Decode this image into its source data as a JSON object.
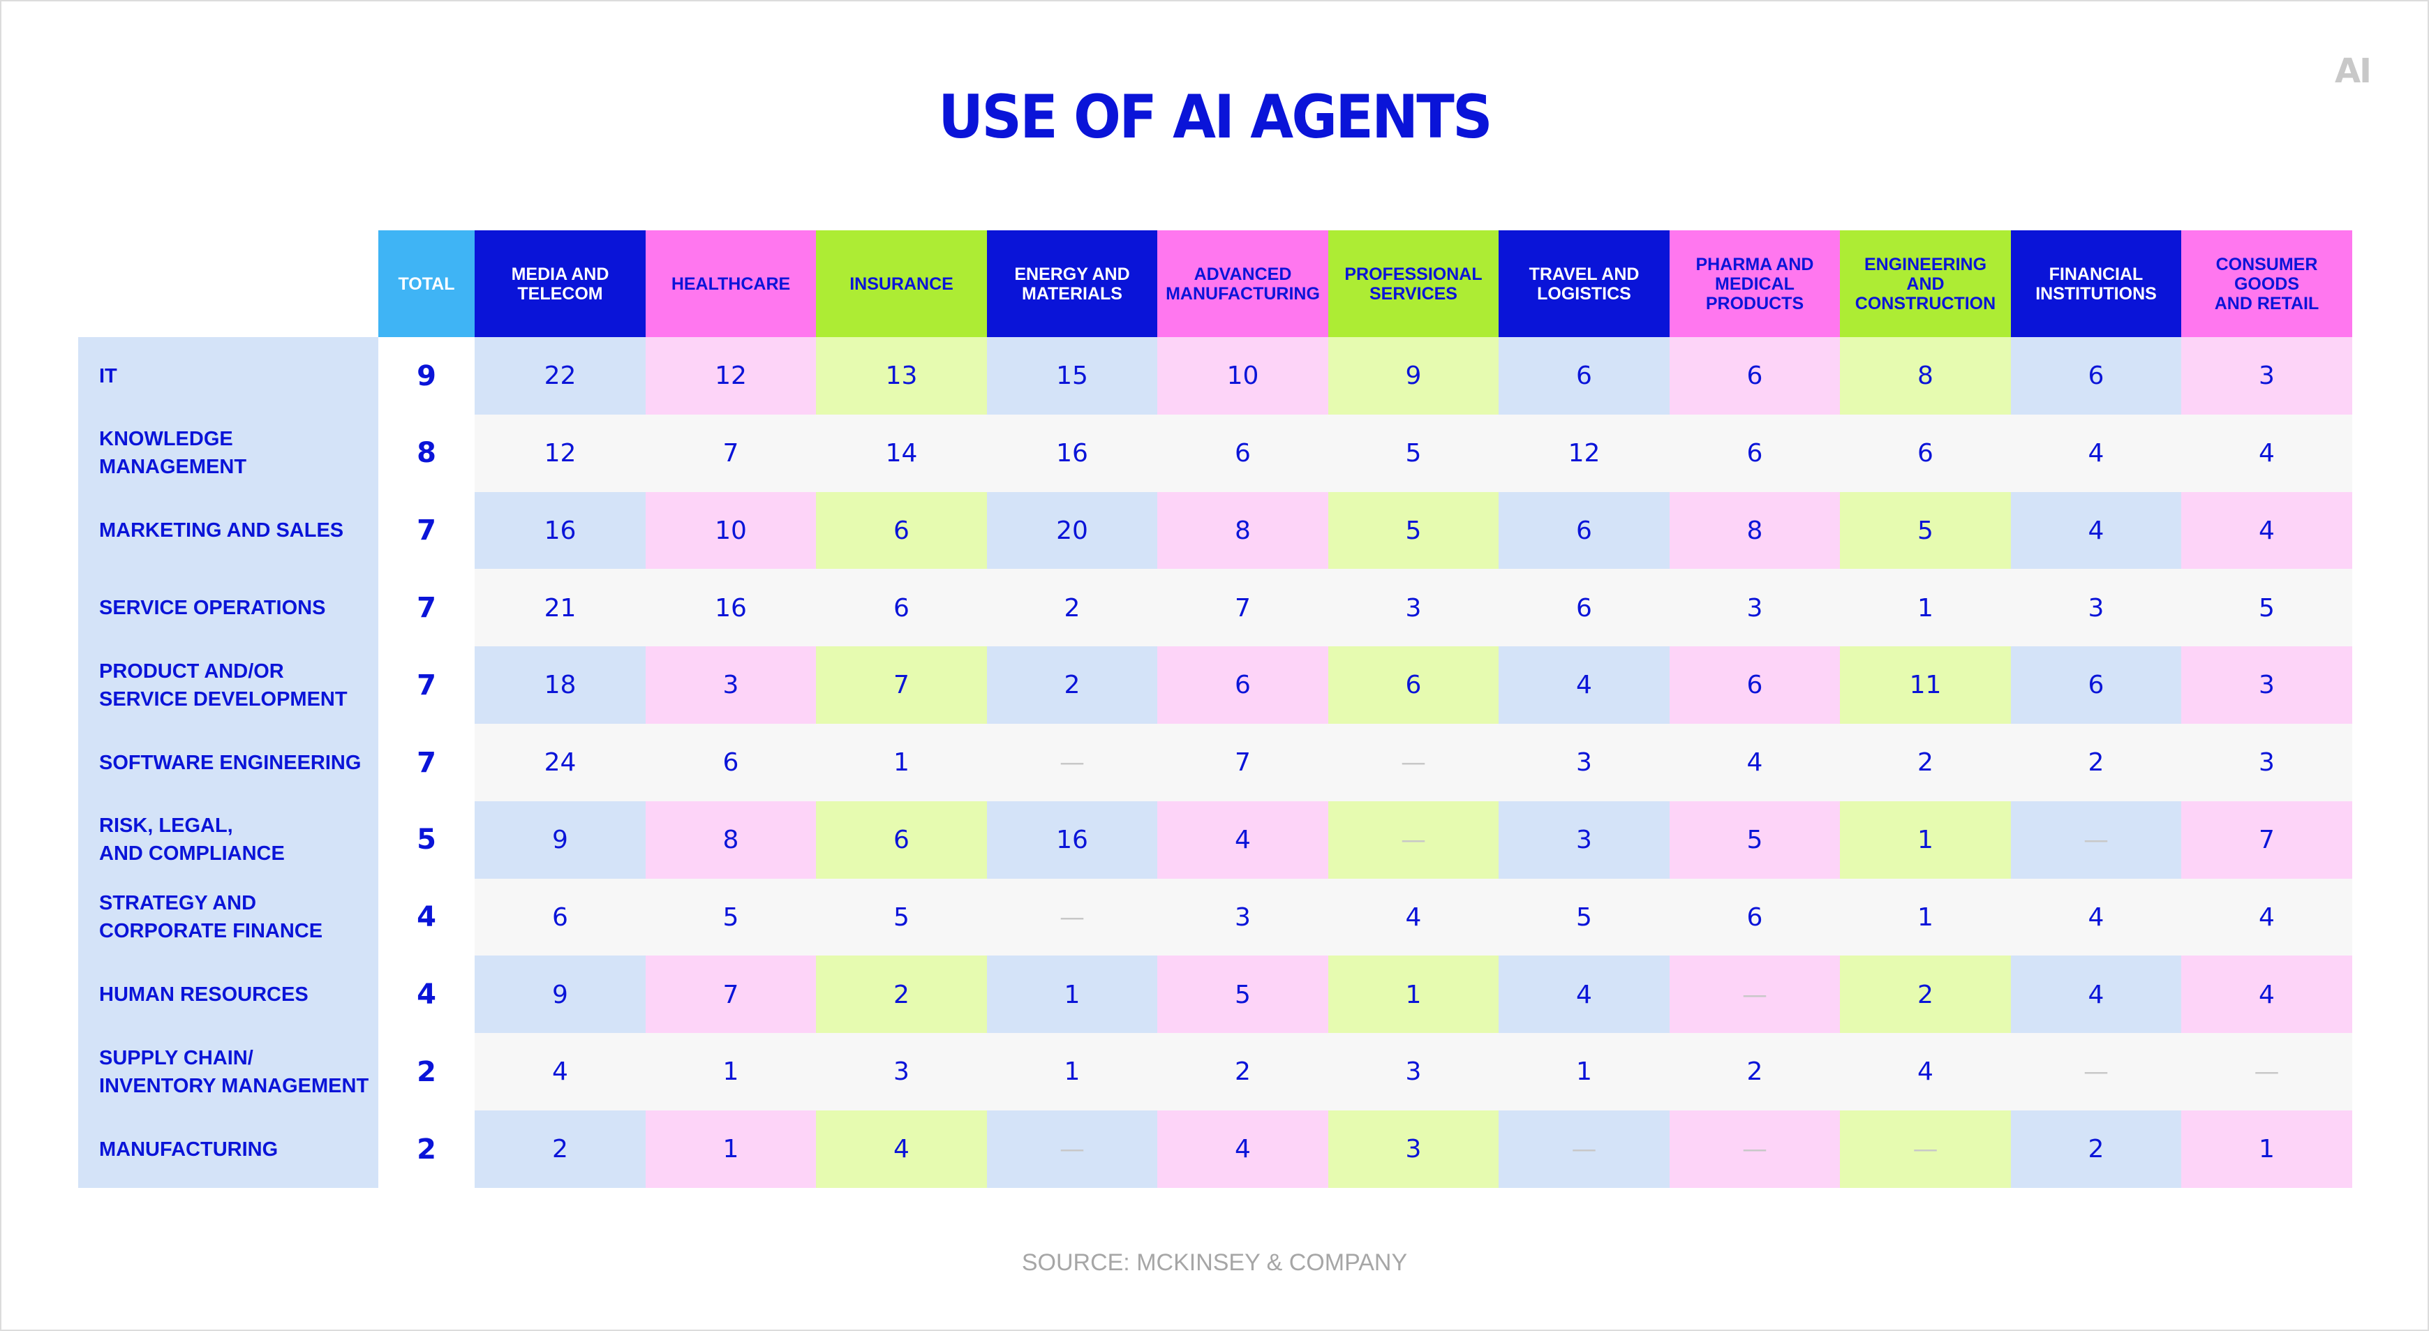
{
  "title": "USE OF AI AGENTS",
  "source": "SOURCE: MCKINSEY & COMPANY",
  "logo_text": "AI",
  "colors": {
    "total_header": "#3fb4f5",
    "blue_header": "#0a14d8",
    "pink_header": "#ff77ef",
    "green_header": "#adec34",
    "blue_tint": "#d4e3f8",
    "pink_tint": "#fdd4f8",
    "green_tint": "#e6fbb0",
    "stripe": "#f7f7f7",
    "text": "#0a14d8",
    "dash": "#c8c8c8"
  },
  "chart_data": {
    "type": "table",
    "title": "USE OF AI AGENTS",
    "total_label": "TOTAL",
    "columns": [
      {
        "label": "MEDIA AND\nTELECOM",
        "color": "blue"
      },
      {
        "label": "HEALTHCARE",
        "color": "pink"
      },
      {
        "label": "INSURANCE",
        "color": "green"
      },
      {
        "label": "ENERGY AND\nMATERIALS",
        "color": "blue"
      },
      {
        "label": "ADVANCED\nMANUFACTURING",
        "color": "pink"
      },
      {
        "label": "PROFESSIONAL\nSERVICES",
        "color": "green"
      },
      {
        "label": "TRAVEL AND\nLOGISTICS",
        "color": "blue"
      },
      {
        "label": "PHARMA AND\nMEDICAL PRODUCTS",
        "color": "pink"
      },
      {
        "label": "ENGINEERING AND\nCONSTRUCTION",
        "color": "green"
      },
      {
        "label": "FINANCIAL\nINSTITUTIONS",
        "color": "blue"
      },
      {
        "label": "CONSUMER GOODS\nAND RETAIL",
        "color": "pink"
      }
    ],
    "rows": [
      {
        "label": "IT",
        "total": "9",
        "values": [
          "22",
          "12",
          "13",
          "15",
          "10",
          "9",
          "6",
          "6",
          "8",
          "6",
          "3"
        ]
      },
      {
        "label": "KNOWLEDGE MANAGEMENT",
        "total": "8",
        "values": [
          "12",
          "7",
          "14",
          "16",
          "6",
          "5",
          "12",
          "6",
          "6",
          "4",
          "4"
        ]
      },
      {
        "label": "MARKETING AND SALES",
        "total": "7",
        "values": [
          "16",
          "10",
          "6",
          "20",
          "8",
          "5",
          "6",
          "8",
          "5",
          "4",
          "4"
        ]
      },
      {
        "label": "SERVICE OPERATIONS",
        "total": "7",
        "values": [
          "21",
          "16",
          "6",
          "2",
          "7",
          "3",
          "6",
          "3",
          "1",
          "3",
          "5"
        ]
      },
      {
        "label": "PRODUCT AND/OR\nSERVICE DEVELOPMENT",
        "total": "7",
        "values": [
          "18",
          "3",
          "7",
          "2",
          "6",
          "6",
          "4",
          "6",
          "11",
          "6",
          "3"
        ]
      },
      {
        "label": "SOFTWARE ENGINEERING",
        "total": "7",
        "values": [
          "24",
          "6",
          "1",
          "—",
          "7",
          "—",
          "3",
          "4",
          "2",
          "2",
          "3"
        ]
      },
      {
        "label": "RISK, LEGAL,\nAND COMPLIANCE",
        "total": "5",
        "values": [
          "9",
          "8",
          "6",
          "16",
          "4",
          "—",
          "3",
          "5",
          "1",
          "—",
          "7"
        ]
      },
      {
        "label": "STRATEGY AND\nCORPORATE FINANCE",
        "total": "4",
        "values": [
          "6",
          "5",
          "5",
          "—",
          "3",
          "4",
          "5",
          "6",
          "1",
          "4",
          "4"
        ]
      },
      {
        "label": "HUMAN RESOURCES",
        "total": "4",
        "values": [
          "9",
          "7",
          "2",
          "1",
          "5",
          "1",
          "4",
          "—",
          "2",
          "4",
          "4"
        ]
      },
      {
        "label": "SUPPLY CHAIN/\nINVENTORY MANAGEMENT",
        "total": "2",
        "values": [
          "4",
          "1",
          "3",
          "1",
          "2",
          "3",
          "1",
          "2",
          "4",
          "—",
          "—"
        ]
      },
      {
        "label": "MANUFACTURING",
        "total": "2",
        "values": [
          "2",
          "1",
          "4",
          "—",
          "4",
          "3",
          "—",
          "—",
          "—",
          "2",
          "1"
        ]
      }
    ]
  }
}
